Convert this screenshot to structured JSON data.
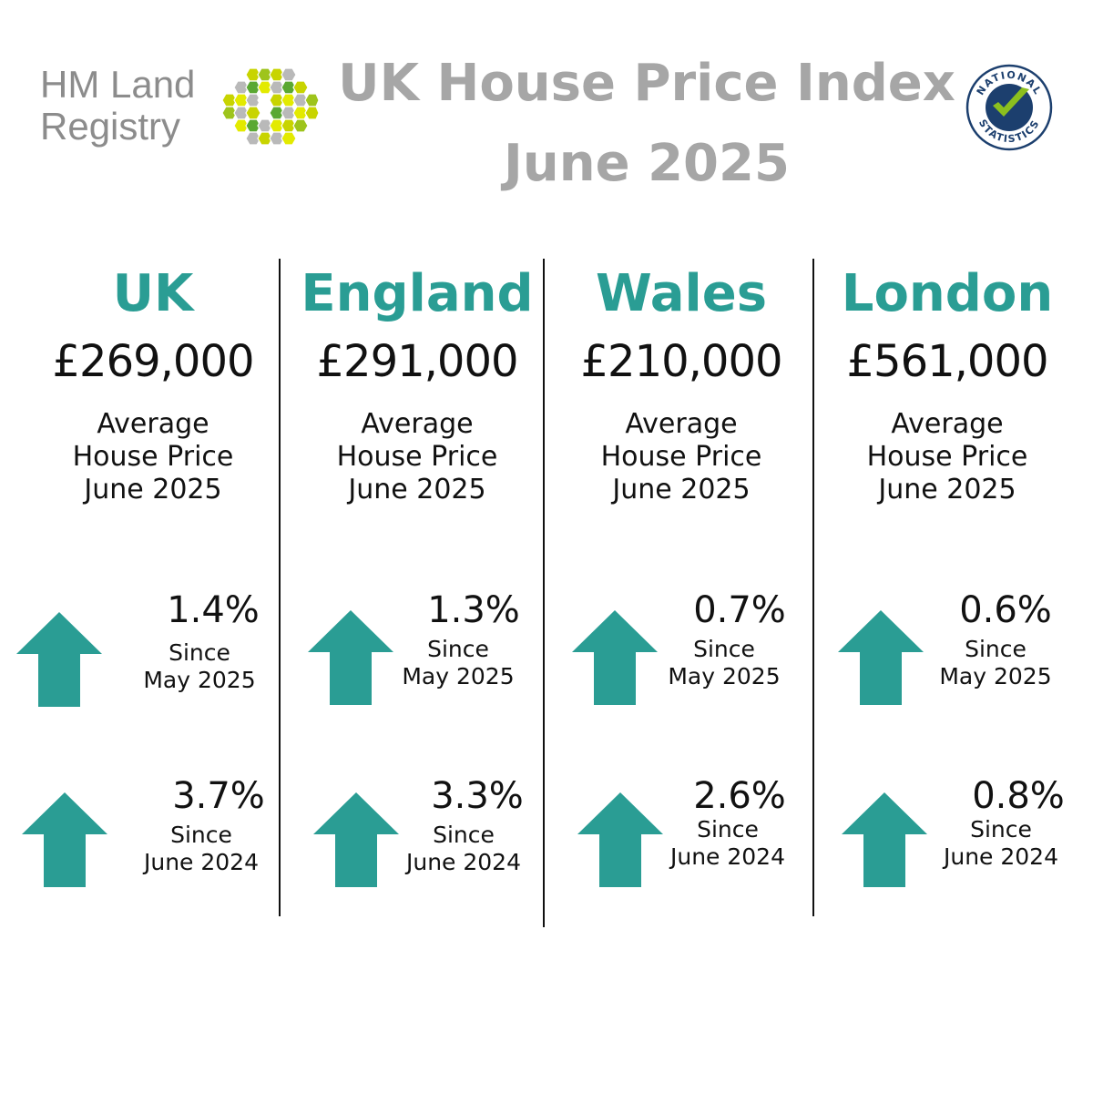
{
  "brand": {
    "logo_line1": "HM Land",
    "logo_line2": "Registry",
    "badge_top": "NATIONAL",
    "badge_bottom": "STATISTICS"
  },
  "header": {
    "title_line1": "UK House Price Index",
    "title_line2": "June 2025"
  },
  "colors": {
    "accent": "#2a9d94",
    "title_grey": "#a6a6a6"
  },
  "regions": [
    {
      "name": "UK",
      "price": "£269,000",
      "desc_line1": "Average",
      "desc_line2": "House Price",
      "desc_line3": "June 2025",
      "monthly": {
        "pct": "1.4%",
        "since_line1": "Since",
        "since_line2": "May 2025",
        "icon": "arrow-up-icon"
      },
      "annual": {
        "pct": "3.7%",
        "since_line1": "Since",
        "since_line2": "June 2024",
        "icon": "arrow-up-icon"
      }
    },
    {
      "name": "England",
      "price": "£291,000",
      "desc_line1": "Average",
      "desc_line2": "House Price",
      "desc_line3": "June 2025",
      "monthly": {
        "pct": "1.3%",
        "since_line1": "Since",
        "since_line2": "May 2025",
        "icon": "arrow-up-icon"
      },
      "annual": {
        "pct": "3.3%",
        "since_line1": "Since",
        "since_line2": "June 2024",
        "icon": "arrow-up-icon"
      }
    },
    {
      "name": "Wales",
      "price": "£210,000",
      "desc_line1": "Average",
      "desc_line2": "House Price",
      "desc_line3": "June 2025",
      "monthly": {
        "pct": "0.7%",
        "since_line1": "Since",
        "since_line2": "May 2025",
        "icon": "arrow-up-icon"
      },
      "annual": {
        "pct": "2.6%",
        "since_line1": "Since",
        "since_line2": "June 2024",
        "icon": "arrow-up-icon"
      }
    },
    {
      "name": "London",
      "price": "£561,000",
      "desc_line1": "Average",
      "desc_line2": "House Price",
      "desc_line3": "June 2025",
      "monthly": {
        "pct": "0.6%",
        "since_line1": "Since",
        "since_line2": "May 2025",
        "icon": "arrow-up-icon"
      },
      "annual": {
        "pct": "0.8%",
        "since_line1": "Since",
        "since_line2": "June 2024",
        "icon": "arrow-up-icon"
      }
    }
  ]
}
